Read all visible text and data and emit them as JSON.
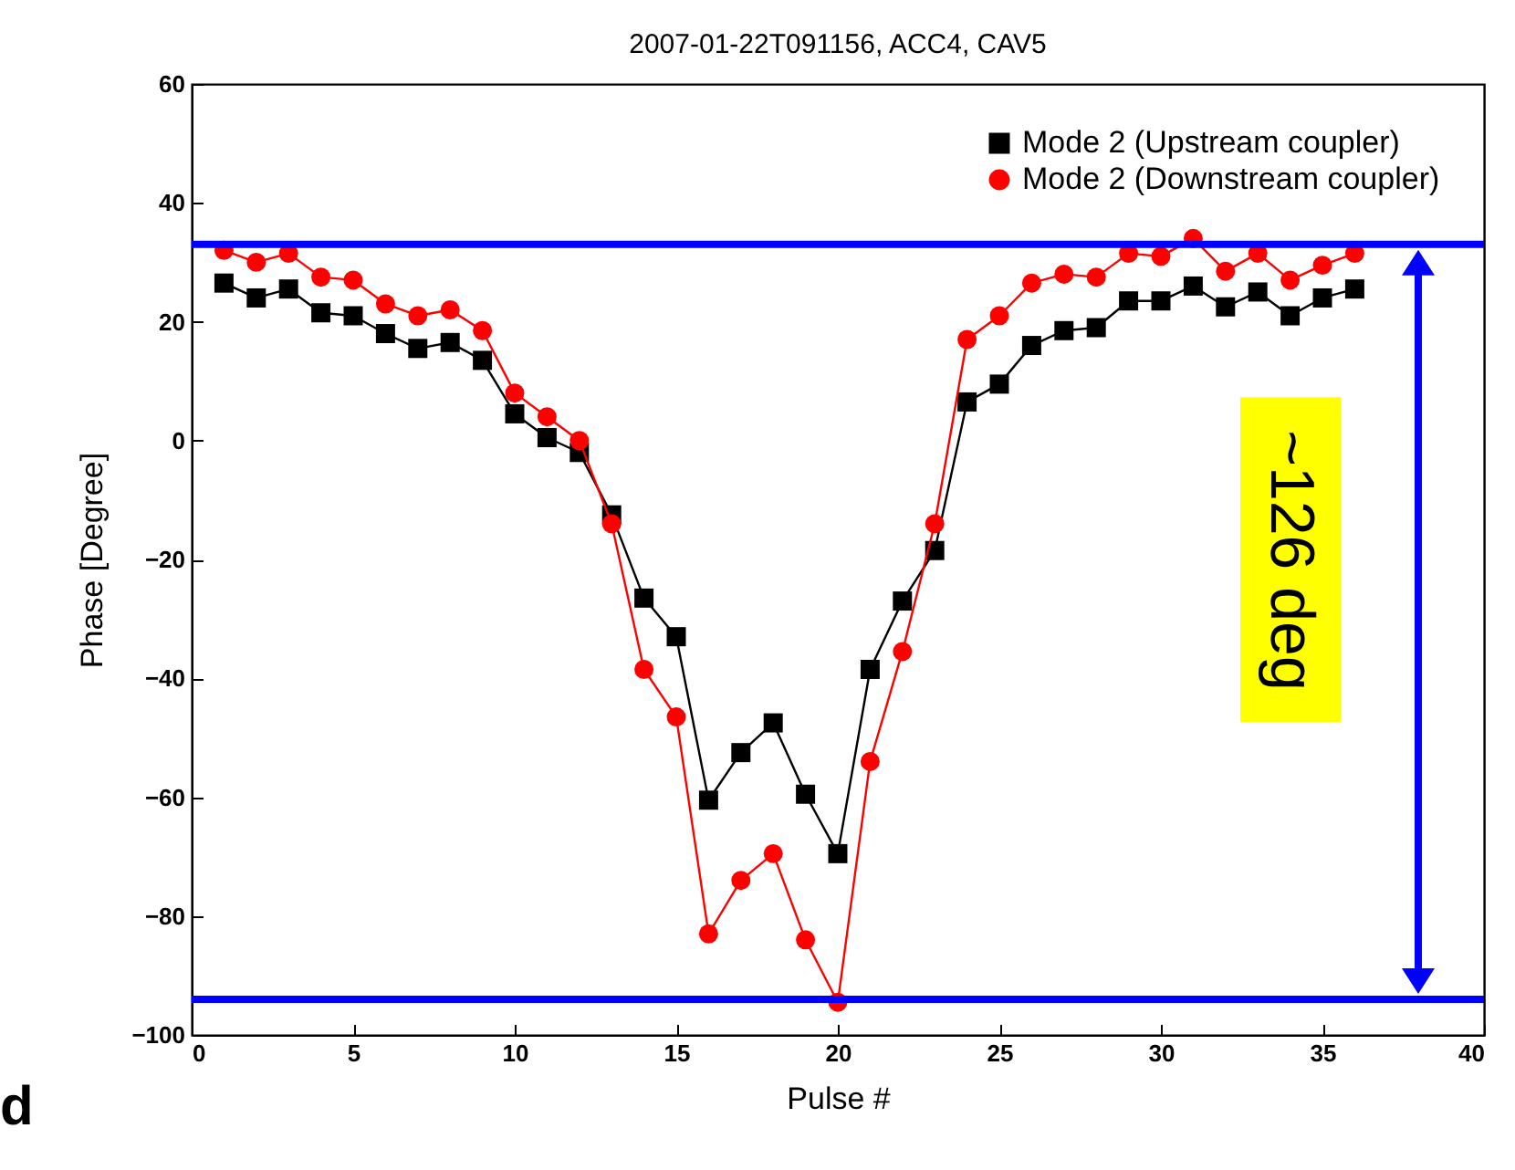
{
  "chart_data": {
    "type": "line",
    "title": "2007-01-22T091156, ACC4, CAV5",
    "xlabel": "Pulse #",
    "ylabel": "Phase [Degree]",
    "x": [
      1,
      2,
      3,
      4,
      5,
      6,
      7,
      8,
      9,
      10,
      11,
      12,
      13,
      14,
      15,
      16,
      17,
      18,
      19,
      20,
      21,
      22,
      23,
      24,
      25,
      26,
      27,
      28,
      29,
      30,
      31,
      32,
      33,
      34,
      35,
      36
    ],
    "series": [
      {
        "name": "Mode 2 (Upstream coupler)",
        "color": "#000000",
        "marker": "square",
        "values": [
          26.5,
          24,
          25.5,
          21.5,
          21,
          18,
          15.5,
          16.5,
          13.5,
          4.5,
          0.5,
          -2,
          -12.5,
          -26.5,
          -33,
          -60.5,
          -52.5,
          -47.5,
          -59.5,
          -69.5,
          -38.5,
          -27,
          -18.5,
          6.5,
          9.5,
          16,
          18.5,
          19,
          23.5,
          23.5,
          26,
          22.5,
          25,
          21,
          24,
          25.5
        ]
      },
      {
        "name": "Mode 2 (Downstream coupler)",
        "color": "#ff0000",
        "marker": "circle",
        "values": [
          32,
          30,
          31.5,
          27.5,
          27,
          23,
          21,
          22,
          18.5,
          8,
          4,
          0,
          -14,
          -38.5,
          -46.5,
          -83,
          -74,
          -69.5,
          -84,
          -94.5,
          -54,
          -35.5,
          -14,
          17,
          21,
          26.5,
          28,
          27.5,
          31.5,
          31,
          34,
          28.5,
          31.5,
          27,
          29.5,
          31.5
        ]
      }
    ],
    "xlim": [
      0,
      40
    ],
    "xticks": [
      0,
      5,
      10,
      15,
      20,
      25,
      30,
      35,
      40
    ],
    "ylim": [
      -100,
      60
    ],
    "yticks": [
      -100,
      -80,
      -60,
      -40,
      -20,
      0,
      20,
      40,
      60
    ],
    "ref_lines": [
      {
        "axis": "y",
        "value": 33,
        "color": "#0000ff"
      },
      {
        "axis": "y",
        "value": -94,
        "color": "#0000ff"
      }
    ],
    "annotations": [
      "~126 deg",
      "d"
    ],
    "legend": "top right",
    "grid": false,
    "line_style": "solid"
  }
}
